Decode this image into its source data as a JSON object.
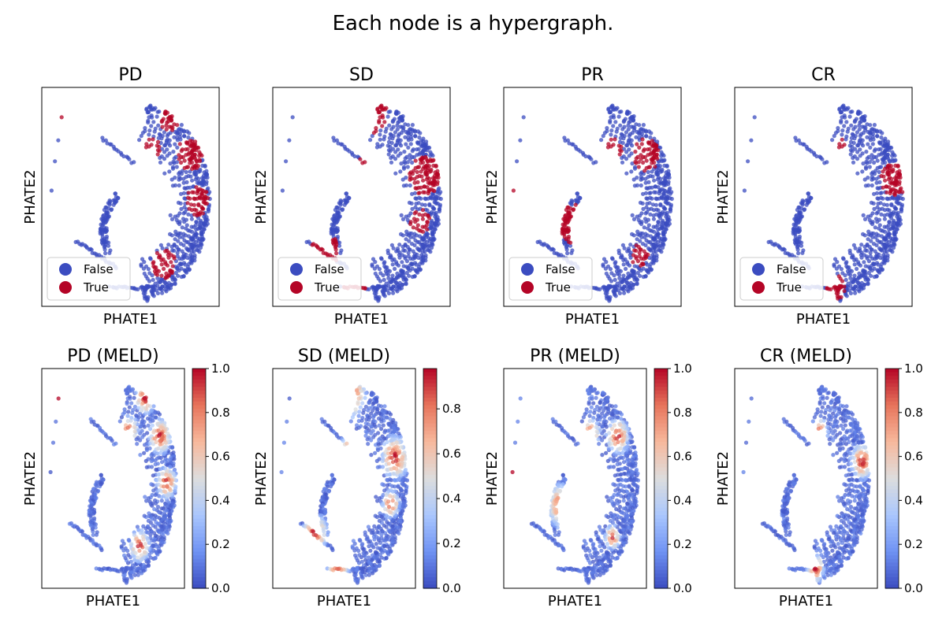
{
  "figure": {
    "suptitle": "Each node is a hypergraph."
  },
  "colors": {
    "false": "#3b4cc0",
    "true": "#b40426",
    "colormap": [
      "#3b4cc0",
      "#6f92f3",
      "#aac7fd",
      "#dddddd",
      "#f7b89c",
      "#e7745b",
      "#b40426"
    ]
  },
  "chart_data": [
    {
      "type": "scatter",
      "title": "PD",
      "xlabel": "PHATE1",
      "ylabel": "PHATE2",
      "grid": false,
      "legend": {
        "entries": [
          "False",
          "True"
        ],
        "placement": "lower-left"
      }
    },
    {
      "type": "scatter",
      "title": "SD",
      "xlabel": "PHATE1",
      "ylabel": "PHATE2",
      "grid": false,
      "legend": {
        "entries": [
          "False",
          "True"
        ],
        "placement": "lower-left"
      }
    },
    {
      "type": "scatter",
      "title": "PR",
      "xlabel": "PHATE1",
      "ylabel": "PHATE2",
      "grid": false,
      "legend": {
        "entries": [
          "False",
          "True"
        ],
        "placement": "lower-left"
      }
    },
    {
      "type": "scatter",
      "title": "CR",
      "xlabel": "PHATE1",
      "ylabel": "PHATE2",
      "grid": false,
      "legend": {
        "entries": [
          "False",
          "True"
        ],
        "placement": "lower-left"
      }
    },
    {
      "type": "scatter",
      "title": "PD (MELD)",
      "xlabel": "PHATE1",
      "ylabel": "PHATE2",
      "grid": false,
      "colorbar": {
        "range": [
          0.0,
          1.0
        ],
        "ticks": [
          "0.0",
          "0.2",
          "0.4",
          "0.6",
          "0.8",
          "1.0"
        ]
      }
    },
    {
      "type": "scatter",
      "title": "SD (MELD)",
      "xlabel": "PHATE1",
      "ylabel": "PHATE2",
      "grid": false,
      "colorbar": {
        "range": [
          0.0,
          0.98
        ],
        "ticks": [
          "0.0",
          "0.2",
          "0.4",
          "0.6",
          "0.8"
        ]
      }
    },
    {
      "type": "scatter",
      "title": "PR (MELD)",
      "xlabel": "PHATE1",
      "ylabel": "PHATE2",
      "grid": false,
      "colorbar": {
        "range": [
          0.0,
          1.0
        ],
        "ticks": [
          "0.0",
          "0.2",
          "0.4",
          "0.6",
          "0.8",
          "1.0"
        ]
      }
    },
    {
      "type": "scatter",
      "title": "CR (MELD)",
      "xlabel": "PHATE1",
      "ylabel": "PHATE2",
      "grid": false,
      "colorbar": {
        "range": [
          0.0,
          1.0
        ],
        "ticks": [
          "0.0",
          "0.2",
          "0.4",
          "0.6",
          "0.8",
          "1.0"
        ]
      }
    }
  ]
}
